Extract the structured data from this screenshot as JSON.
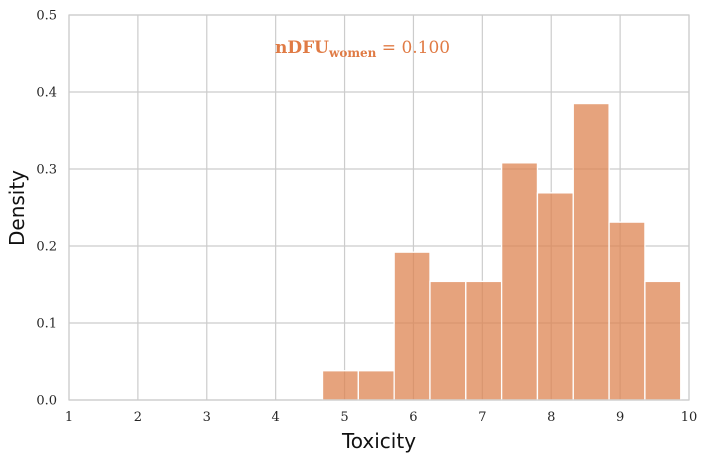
{
  "chart_data": {
    "type": "bar",
    "title": "",
    "xlabel": "Toxicity",
    "ylabel": "Density",
    "xlim": [
      1,
      10
    ],
    "ylim": [
      0,
      0.5
    ],
    "xticks": [
      "1",
      "2",
      "3",
      "4",
      "5",
      "6",
      "7",
      "8",
      "9",
      "10"
    ],
    "yticks": [
      "0.0",
      "0.1",
      "0.2",
      "0.3",
      "0.4",
      "0.5"
    ],
    "grid": true,
    "bin_width": 0.52,
    "bins": [
      {
        "x0": 4.68,
        "x1": 5.2,
        "value": 0.038
      },
      {
        "x0": 5.2,
        "x1": 5.72,
        "value": 0.038
      },
      {
        "x0": 5.72,
        "x1": 6.24,
        "value": 0.192
      },
      {
        "x0": 6.24,
        "x1": 6.76,
        "value": 0.154
      },
      {
        "x0": 6.76,
        "x1": 7.28,
        "value": 0.154
      },
      {
        "x0": 7.28,
        "x1": 7.8,
        "value": 0.308
      },
      {
        "x0": 7.8,
        "x1": 8.32,
        "value": 0.269
      },
      {
        "x0": 8.32,
        "x1": 8.84,
        "value": 0.385
      },
      {
        "x0": 8.84,
        "x1": 9.36,
        "value": 0.231
      },
      {
        "x0": 9.36,
        "x1": 9.88,
        "value": 0.154
      }
    ],
    "bar_color": "#dd8452",
    "annotation": {
      "main": "nDFU",
      "subscript": "women",
      "suffix": " = 0.100"
    }
  }
}
